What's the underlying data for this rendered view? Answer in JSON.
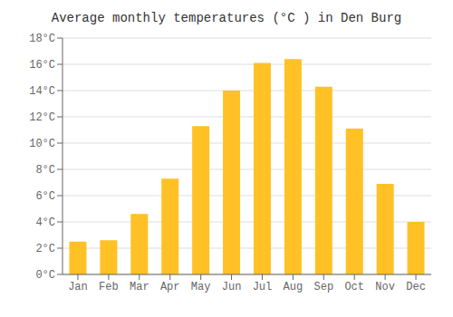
{
  "chart_data": {
    "type": "bar",
    "title": "Average monthly temperatures (°C ) in Den Burg",
    "categories": [
      "Jan",
      "Feb",
      "Mar",
      "Apr",
      "May",
      "Jun",
      "Jul",
      "Aug",
      "Sep",
      "Oct",
      "Nov",
      "Dec"
    ],
    "values": [
      2.5,
      2.6,
      4.6,
      7.3,
      11.3,
      14.0,
      16.1,
      16.4,
      14.3,
      11.1,
      6.9,
      4.0
    ],
    "color": "#FFC125",
    "ylim": [
      0,
      18
    ],
    "yticks": [
      {
        "value": 0,
        "label": "0°C"
      },
      {
        "value": 2,
        "label": "2°C"
      },
      {
        "value": 4,
        "label": "4°C"
      },
      {
        "value": 6,
        "label": "6°C"
      },
      {
        "value": 8,
        "label": "8°C"
      },
      {
        "value": 10,
        "label": "10°C"
      },
      {
        "value": 12,
        "label": "12°C"
      },
      {
        "value": 14,
        "label": "14°C"
      },
      {
        "value": 16,
        "label": "16°C"
      },
      {
        "value": 18,
        "label": "18°C"
      }
    ],
    "grid": true
  }
}
